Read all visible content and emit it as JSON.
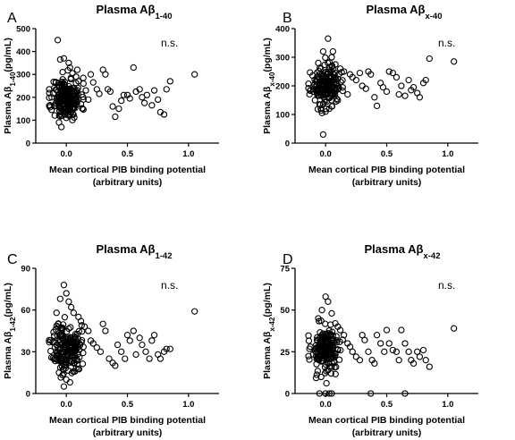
{
  "figure": {
    "panels": [
      {
        "letter": "A",
        "title_main": "Plasma Aβ",
        "title_sub": "1-40",
        "ylabel_main": "Plasma Aβ",
        "ylabel_sub": "1-40",
        "ylabel_unit": "(pg/mL)",
        "annotation": "n.s."
      },
      {
        "letter": "B",
        "title_main": "Plasma Aβ",
        "title_sub": "x-40",
        "ylabel_main": "Plasma Aβ",
        "ylabel_sub": "x-40",
        "ylabel_unit": "(pg/mL)",
        "annotation": "n.s."
      },
      {
        "letter": "C",
        "title_main": "Plasma Aβ",
        "title_sub": "1-42",
        "ylabel_main": "Plasma Aβ",
        "ylabel_sub": "1-42",
        "ylabel_unit": "(pg/mL)",
        "annotation": "n.s."
      },
      {
        "letter": "D",
        "title_main": "Plasma Aβ",
        "title_sub": "x-42",
        "ylabel_main": "Plasma Aβ",
        "ylabel_sub": "x-42",
        "ylabel_unit": "(pg/mL)",
        "annotation": "n.s."
      }
    ],
    "xlabel_line1": "Mean cortical PIB binding potential",
    "xlabel_line2": "(arbitrary units)"
  },
  "chart_data": [
    {
      "type": "scatter",
      "title": "Plasma Aβ1-40",
      "xlabel": "Mean cortical PIB binding potential (arbitrary units)",
      "ylabel": "Plasma Aβ1-40(pg/mL)",
      "xlim": [
        -0.25,
        1.25
      ],
      "ylim": [
        0,
        500
      ],
      "xticks": [
        0.0,
        0.5,
        1.0
      ],
      "yticks": [
        0,
        100,
        200,
        300,
        400,
        500
      ],
      "xtick_labels": [
        "0.0",
        "0.5",
        "1.0"
      ],
      "ytick_labels": [
        "0",
        "100",
        "200",
        "300",
        "400",
        "500"
      ],
      "annotation": "n.s.",
      "cluster": {
        "center": [
          0.0,
          195
        ],
        "spread": [
          0.06,
          45
        ],
        "n": 190,
        "seed": 11
      },
      "points": [
        [
          -0.07,
          450
        ],
        [
          -0.05,
          365
        ],
        [
          -0.02,
          370
        ],
        [
          0.02,
          350
        ],
        [
          0.03,
          330
        ],
        [
          -0.03,
          310
        ],
        [
          0.05,
          305
        ],
        [
          0.08,
          290
        ],
        [
          0.1,
          270
        ],
        [
          -0.1,
          240
        ],
        [
          0.14,
          260
        ],
        [
          0.16,
          230
        ],
        [
          0.2,
          300
        ],
        [
          0.22,
          265
        ],
        [
          0.25,
          235
        ],
        [
          0.27,
          215
        ],
        [
          0.3,
          320
        ],
        [
          0.32,
          300
        ],
        [
          0.34,
          235
        ],
        [
          0.36,
          225
        ],
        [
          0.38,
          160
        ],
        [
          0.4,
          115
        ],
        [
          0.43,
          150
        ],
        [
          0.45,
          185
        ],
        [
          0.47,
          210
        ],
        [
          0.5,
          210
        ],
        [
          0.52,
          195
        ],
        [
          0.55,
          330
        ],
        [
          0.57,
          225
        ],
        [
          0.6,
          235
        ],
        [
          0.62,
          200
        ],
        [
          0.64,
          175
        ],
        [
          0.66,
          210
        ],
        [
          0.7,
          165
        ],
        [
          0.72,
          230
        ],
        [
          0.75,
          190
        ],
        [
          0.77,
          135
        ],
        [
          0.8,
          125
        ],
        [
          0.82,
          235
        ],
        [
          0.85,
          270
        ],
        [
          1.05,
          300
        ],
        [
          0.06,
          150
        ],
        [
          0.04,
          140
        ],
        [
          -0.06,
          90
        ],
        [
          -0.04,
          70
        ],
        [
          0.0,
          110
        ],
        [
          0.12,
          170
        ],
        [
          0.18,
          190
        ],
        [
          -0.12,
          200
        ],
        [
          0.09,
          320
        ]
      ]
    },
    {
      "type": "scatter",
      "title": "Plasma Aβx-40",
      "xlabel": "Mean cortical PIB binding potential (arbitrary units)",
      "ylabel": "Plasma Aβx-40(pg/mL)",
      "xlim": [
        -0.25,
        1.25
      ],
      "ylim": [
        0,
        400
      ],
      "xticks": [
        0.0,
        0.5,
        1.0
      ],
      "yticks": [
        0,
        100,
        200,
        300,
        400
      ],
      "xtick_labels": [
        "0.0",
        "0.5",
        "1.0"
      ],
      "ytick_labels": [
        "0",
        "100",
        "200",
        "300",
        "400"
      ],
      "annotation": "n.s.",
      "cluster": {
        "center": [
          0.0,
          200
        ],
        "spread": [
          0.06,
          32
        ],
        "n": 190,
        "seed": 23
      },
      "points": [
        [
          0.02,
          365
        ],
        [
          -0.02,
          320
        ],
        [
          0.05,
          300
        ],
        [
          -0.06,
          280
        ],
        [
          0.08,
          275
        ],
        [
          0.12,
          260
        ],
        [
          0.15,
          250
        ],
        [
          0.2,
          240
        ],
        [
          0.22,
          230
        ],
        [
          0.25,
          220
        ],
        [
          0.28,
          245
        ],
        [
          0.3,
          200
        ],
        [
          0.33,
          190
        ],
        [
          0.35,
          250
        ],
        [
          0.37,
          240
        ],
        [
          0.4,
          160
        ],
        [
          0.42,
          130
        ],
        [
          0.45,
          210
        ],
        [
          0.47,
          195
        ],
        [
          0.5,
          180
        ],
        [
          0.52,
          250
        ],
        [
          0.55,
          245
        ],
        [
          0.58,
          230
        ],
        [
          0.6,
          170
        ],
        [
          0.62,
          200
        ],
        [
          0.65,
          165
        ],
        [
          0.68,
          220
        ],
        [
          0.7,
          185
        ],
        [
          0.72,
          195
        ],
        [
          0.75,
          175
        ],
        [
          0.77,
          160
        ],
        [
          0.8,
          210
        ],
        [
          0.82,
          220
        ],
        [
          0.85,
          295
        ],
        [
          1.05,
          285
        ],
        [
          -0.02,
          30
        ],
        [
          0.0,
          110
        ],
        [
          0.03,
          120
        ],
        [
          -0.05,
          135
        ],
        [
          0.1,
          150
        ],
        [
          0.18,
          170
        ],
        [
          -0.1,
          180
        ],
        [
          0.06,
          320
        ]
      ]
    },
    {
      "type": "scatter",
      "title": "Plasma Aβ1-42",
      "xlabel": "Mean cortical PIB binding potential (arbitrary units)",
      "ylabel": "Plasma Aβ1-42(pg/mL)",
      "xlim": [
        -0.25,
        1.25
      ],
      "ylim": [
        0,
        90
      ],
      "xticks": [
        0.0,
        0.5,
        1.0
      ],
      "yticks": [
        0,
        30,
        60,
        90
      ],
      "xtick_labels": [
        "0.0",
        "0.5",
        "1.0"
      ],
      "ytick_labels": [
        "0",
        "30",
        "60",
        "90"
      ],
      "annotation": "n.s.",
      "cluster": {
        "center": [
          0.0,
          33
        ],
        "spread": [
          0.06,
          9
        ],
        "n": 190,
        "seed": 37
      },
      "points": [
        [
          -0.02,
          78
        ],
        [
          0.0,
          72
        ],
        [
          0.02,
          66
        ],
        [
          -0.05,
          68
        ],
        [
          0.04,
          62
        ],
        [
          0.06,
          58
        ],
        [
          -0.08,
          58
        ],
        [
          0.1,
          55
        ],
        [
          0.12,
          52
        ],
        [
          0.15,
          48
        ],
        [
          0.18,
          45
        ],
        [
          0.2,
          38
        ],
        [
          0.22,
          36
        ],
        [
          0.25,
          33
        ],
        [
          0.28,
          30
        ],
        [
          0.3,
          50
        ],
        [
          0.32,
          45
        ],
        [
          0.35,
          25
        ],
        [
          0.38,
          22
        ],
        [
          0.4,
          20
        ],
        [
          0.42,
          35
        ],
        [
          0.45,
          30
        ],
        [
          0.48,
          25
        ],
        [
          0.5,
          42
        ],
        [
          0.52,
          38
        ],
        [
          0.55,
          45
        ],
        [
          0.57,
          28
        ],
        [
          0.6,
          40
        ],
        [
          0.62,
          35
        ],
        [
          0.65,
          30
        ],
        [
          0.68,
          25
        ],
        [
          0.7,
          38
        ],
        [
          0.72,
          42
        ],
        [
          0.75,
          28
        ],
        [
          0.77,
          25
        ],
        [
          0.8,
          30
        ],
        [
          0.82,
          32
        ],
        [
          0.85,
          32
        ],
        [
          1.05,
          59
        ],
        [
          -0.02,
          5
        ],
        [
          0.0,
          10
        ],
        [
          0.03,
          8
        ],
        [
          -0.06,
          15
        ],
        [
          0.08,
          18
        ]
      ]
    },
    {
      "type": "scatter",
      "title": "Plasma Aβx-42",
      "xlabel": "Mean cortical PIB binding potential (arbitrary units)",
      "ylabel": "Plasma Aβx-42(pg/mL)",
      "xlim": [
        -0.25,
        1.25
      ],
      "ylim": [
        0,
        75
      ],
      "xticks": [
        0.0,
        0.5,
        1.0
      ],
      "yticks": [
        0,
        25,
        50,
        75
      ],
      "xtick_labels": [
        "0.0",
        "0.5",
        "1.0"
      ],
      "ytick_labels": [
        "0",
        "25",
        "50",
        "75"
      ],
      "annotation": "n.s.",
      "cluster": {
        "center": [
          0.0,
          26
        ],
        "spread": [
          0.06,
          7
        ],
        "n": 190,
        "seed": 53
      },
      "points": [
        [
          0.0,
          58
        ],
        [
          0.02,
          55
        ],
        [
          -0.03,
          50
        ],
        [
          0.05,
          48
        ],
        [
          -0.06,
          45
        ],
        [
          0.08,
          42
        ],
        [
          0.1,
          40
        ],
        [
          0.12,
          38
        ],
        [
          0.15,
          35
        ],
        [
          0.18,
          30
        ],
        [
          0.2,
          28
        ],
        [
          0.22,
          25
        ],
        [
          0.25,
          22
        ],
        [
          0.28,
          20
        ],
        [
          0.3,
          35
        ],
        [
          0.32,
          32
        ],
        [
          0.35,
          25
        ],
        [
          0.38,
          20
        ],
        [
          0.4,
          18
        ],
        [
          0.42,
          35
        ],
        [
          0.45,
          30
        ],
        [
          0.48,
          25
        ],
        [
          0.5,
          38
        ],
        [
          0.52,
          30
        ],
        [
          0.55,
          26
        ],
        [
          0.58,
          25
        ],
        [
          0.6,
          20
        ],
        [
          0.62,
          38
        ],
        [
          0.65,
          30
        ],
        [
          0.68,
          25
        ],
        [
          0.7,
          20
        ],
        [
          0.72,
          18
        ],
        [
          0.75,
          25
        ],
        [
          0.77,
          22
        ],
        [
          0.8,
          26
        ],
        [
          0.82,
          20
        ],
        [
          0.85,
          16
        ],
        [
          1.05,
          39
        ],
        [
          -0.05,
          0
        ],
        [
          0.0,
          0
        ],
        [
          0.03,
          0
        ],
        [
          0.05,
          0
        ],
        [
          0.37,
          0
        ],
        [
          0.65,
          0
        ]
      ]
    }
  ]
}
